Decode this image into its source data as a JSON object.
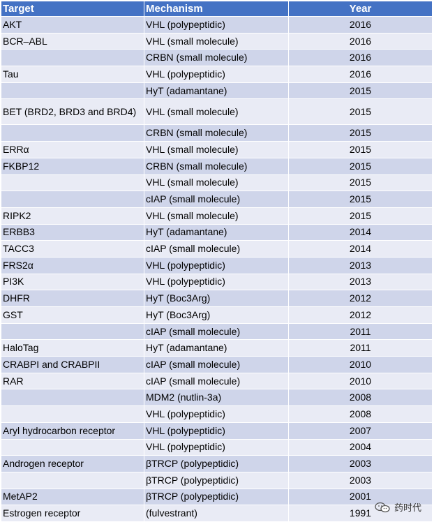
{
  "header": {
    "target": "Target",
    "mechanism": "Mechanism",
    "year": "Year"
  },
  "rows": [
    {
      "target": "AKT",
      "mechanism": "VHL (polypeptidic)",
      "year": "2016"
    },
    {
      "target": "BCR–ABL",
      "mechanism": "VHL (small molecule)",
      "year": "2016"
    },
    {
      "target": "",
      "mechanism": "CRBN (small molecule)",
      "year": "2016"
    },
    {
      "target": "Tau",
      "mechanism": "VHL (polypeptidic)",
      "year": "2016"
    },
    {
      "target": "",
      "mechanism": "HyT (adamantane)",
      "year": "2015"
    },
    {
      "target": "BET (BRD2, BRD3 and BRD4)",
      "mechanism": "VHL (small molecule)",
      "year": "2015"
    },
    {
      "target": "",
      "mechanism": "CRBN (small molecule)",
      "year": "2015"
    },
    {
      "target": "ERRα",
      "mechanism": "VHL (small molecule)",
      "year": "2015"
    },
    {
      "target": "FKBP12",
      "mechanism": "CRBN (small molecule)",
      "year": "2015"
    },
    {
      "target": "",
      "mechanism": "VHL (small molecule)",
      "year": "2015"
    },
    {
      "target": "",
      "mechanism": "cIAP (small molecule)",
      "year": "2015"
    },
    {
      "target": "RIPK2",
      "mechanism": "VHL (small molecule)",
      "year": "2015"
    },
    {
      "target": "ERBB3",
      "mechanism": "HyT (adamantane)",
      "year": "2014"
    },
    {
      "target": "TACC3",
      "mechanism": "cIAP (small molecule)",
      "year": "2014"
    },
    {
      "target": "FRS2α",
      "mechanism": "VHL (polypeptidic)",
      "year": "2013"
    },
    {
      "target": "PI3K",
      "mechanism": "VHL (polypeptidic)",
      "year": "2013"
    },
    {
      "target": "DHFR",
      "mechanism": "HyT (Boc3Arg)",
      "year": "2012"
    },
    {
      "target": "GST",
      "mechanism": "HyT (Boc3Arg)",
      "year": "2012"
    },
    {
      "target": "",
      "mechanism": "cIAP (small molecule)",
      "year": "2011"
    },
    {
      "target": "HaloTag",
      "mechanism": "HyT (adamantane)",
      "year": "2011"
    },
    {
      "target": "CRABPI and CRABPII",
      "mechanism": "cIAP (small molecule)",
      "year": "2010"
    },
    {
      "target": "RAR",
      "mechanism": "cIAP (small molecule)",
      "year": "2010"
    },
    {
      "target": "",
      "mechanism": "MDM2 (nutlin-3a)",
      "year": "2008"
    },
    {
      "target": "",
      "mechanism": "VHL (polypeptidic)",
      "year": "2008"
    },
    {
      "target": "Aryl hydrocarbon receptor",
      "mechanism": "VHL (polypeptidic)",
      "year": "2007"
    },
    {
      "target": "",
      "mechanism": "VHL (polypeptidic)",
      "year": "2004"
    },
    {
      "target": "Androgen receptor",
      "mechanism": "βTRCP (polypeptidic)",
      "year": "2003"
    },
    {
      "target": "",
      "mechanism": "βTRCP (polypeptidic)",
      "year": "2003"
    },
    {
      "target": "MetAP2",
      "mechanism": "βTRCP (polypeptidic)",
      "year": "2001"
    },
    {
      "target": "Estrogen receptor",
      "mechanism": "(fulvestrant)",
      "year": "1991"
    }
  ],
  "watermark": {
    "text": "药时代",
    "icon": "wechat-icon"
  },
  "colors": {
    "header": "#4472c4",
    "row_odd": "#cfd5ea",
    "row_even": "#e9ebf5"
  }
}
